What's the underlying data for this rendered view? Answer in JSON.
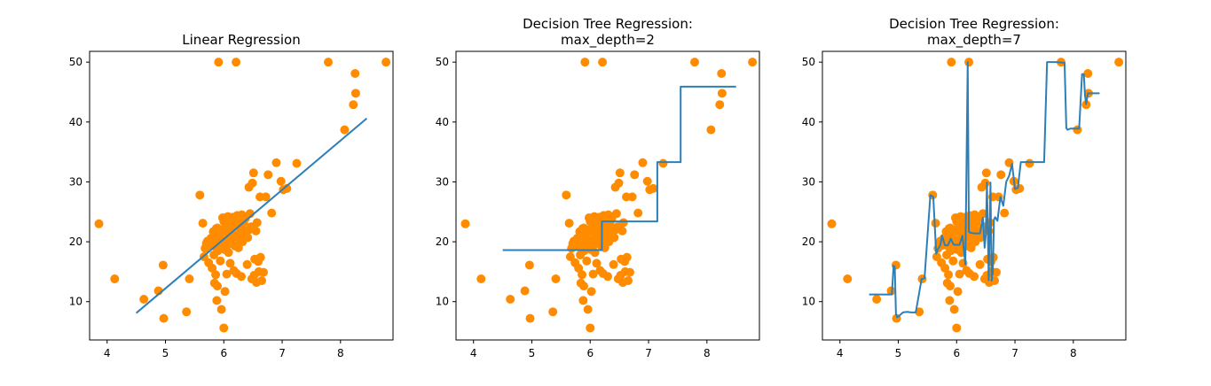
{
  "colors": {
    "scatter": "#ff8c00",
    "line": "#2c7fb8",
    "axis": "#000000"
  },
  "chart_data": [
    {
      "type": "scatter",
      "title": [
        "Linear Regression"
      ],
      "xlim": [
        3.7,
        8.9
      ],
      "ylim": [
        3.6,
        51.8
      ],
      "xticks": [
        4,
        5,
        6,
        7,
        8
      ],
      "yticks": [
        10,
        20,
        30,
        40,
        50
      ],
      "scatter": {
        "x": [
          3.86,
          4.13,
          4.63,
          4.88,
          4.96,
          4.97,
          5.36,
          5.41,
          5.59,
          5.64,
          5.66,
          5.68,
          5.7,
          5.72,
          5.74,
          5.76,
          5.78,
          5.8,
          5.82,
          5.83,
          5.85,
          5.86,
          5.87,
          5.88,
          5.89,
          5.9,
          5.92,
          5.93,
          5.94,
          5.95,
          5.96,
          5.97,
          5.98,
          6.0,
          6.01,
          6.02,
          6.03,
          6.04,
          6.05,
          6.06,
          6.07,
          6.08,
          6.09,
          6.1,
          6.11,
          6.12,
          6.13,
          6.14,
          6.15,
          6.16,
          6.17,
          6.18,
          6.19,
          6.2,
          6.21,
          6.22,
          6.23,
          6.24,
          6.25,
          6.26,
          6.27,
          6.28,
          6.3,
          6.31,
          6.32,
          6.33,
          6.34,
          6.35,
          6.37,
          6.38,
          6.4,
          6.41,
          6.43,
          6.45,
          6.47,
          6.49,
          6.51,
          6.53,
          6.55,
          6.57,
          6.59,
          6.62,
          6.65,
          6.68,
          6.72,
          6.76,
          6.82,
          6.9,
          6.98,
          7.02,
          7.08,
          7.25,
          5.8,
          5.84,
          5.89,
          5.96,
          6.0,
          6.05,
          5.91,
          6.21,
          6.43,
          6.48,
          6.52,
          6.56,
          6.6,
          6.63,
          5.87,
          6.17,
          7.79,
          8.07,
          8.22,
          8.26,
          8.25,
          8.78
        ],
        "y": [
          23.0,
          13.8,
          10.4,
          11.8,
          16.1,
          7.2,
          8.3,
          13.8,
          27.8,
          23.1,
          17.5,
          18.9,
          19.7,
          20.1,
          16.5,
          19.4,
          20.6,
          19.6,
          21.7,
          17.8,
          20.9,
          14.5,
          19.1,
          10.2,
          22.3,
          18.5,
          19.9,
          21.2,
          16.8,
          20.4,
          22.0,
          19.8,
          24.0,
          23.4,
          18.7,
          11.7,
          21.7,
          20.3,
          19.3,
          22.8,
          24.2,
          18.2,
          20.1,
          21.4,
          16.4,
          23.5,
          22.2,
          20.6,
          24.1,
          21.2,
          15.2,
          20.8,
          19.3,
          22.9,
          21.1,
          14.7,
          24.4,
          22.6,
          19.0,
          20.5,
          23.6,
          22.1,
          14.2,
          24.5,
          20.0,
          21.9,
          23.2,
          21.5,
          23.9,
          21.0,
          16.2,
          20.7,
          29.1,
          24.7,
          22.5,
          29.8,
          31.5,
          17.1,
          21.8,
          23.2,
          16.7,
          27.5,
          13.5,
          14.9,
          27.5,
          31.2,
          24.8,
          33.2,
          30.1,
          28.7,
          28.9,
          33.1,
          15.6,
          13.1,
          12.6,
          8.7,
          5.6,
          14.6,
          50.0,
          50.0,
          22.0,
          13.8,
          14.4,
          13.2,
          15.0,
          17.4,
          22.2,
          23.7,
          50.0,
          38.7,
          42.9,
          44.8,
          48.1,
          50.0
        ]
      },
      "line": {
        "x": [
          4.5,
          8.45
        ],
        "y": [
          8.1,
          40.6
        ]
      }
    },
    {
      "type": "scatter",
      "title": [
        "Decision Tree Regression:",
        "max_depth=2"
      ],
      "xlim": [
        3.7,
        8.9
      ],
      "ylim": [
        3.6,
        51.8
      ],
      "xticks": [
        4,
        5,
        6,
        7,
        8
      ],
      "yticks": [
        10,
        20,
        30,
        40,
        50
      ],
      "scatter_source": 0,
      "line": {
        "x": [
          4.5,
          6.2,
          6.2,
          7.15,
          7.15,
          7.55,
          7.55,
          8.5
        ],
        "y": [
          18.6,
          18.6,
          23.4,
          23.4,
          33.3,
          33.3,
          45.9,
          45.9
        ]
      }
    },
    {
      "type": "scatter",
      "title": [
        "Decision Tree Regression:",
        "max_depth=7"
      ],
      "xlim": [
        3.7,
        8.9
      ],
      "ylim": [
        3.6,
        51.8
      ],
      "xticks": [
        4,
        5,
        6,
        7,
        8
      ],
      "yticks": [
        10,
        20,
        30,
        40,
        50
      ],
      "scatter_source": 0,
      "line": {
        "x": [
          4.5,
          4.89,
          4.92,
          4.94,
          4.96,
          4.98,
          5.0,
          5.08,
          5.15,
          5.22,
          5.3,
          5.4,
          5.45,
          5.55,
          5.6,
          5.65,
          5.68,
          5.72,
          5.75,
          5.8,
          5.85,
          5.9,
          5.95,
          6.0,
          6.05,
          6.1,
          6.15,
          6.19,
          6.21,
          6.23,
          6.25,
          6.3,
          6.35,
          6.4,
          6.45,
          6.48,
          6.5,
          6.52,
          6.55,
          6.58,
          6.6,
          6.62,
          6.64,
          6.66,
          6.7,
          6.75,
          6.8,
          6.85,
          6.9,
          6.95,
          7.0,
          7.05,
          7.1,
          7.2,
          7.5,
          7.55,
          7.58,
          7.7,
          7.85,
          7.88,
          7.9,
          7.95,
          8.0,
          8.1,
          8.15,
          8.18,
          8.2,
          8.22,
          8.25,
          8.3,
          8.45
        ],
        "y": [
          11.2,
          11.2,
          16.0,
          15.8,
          8.0,
          7.4,
          7.5,
          8.2,
          8.3,
          8.2,
          8.2,
          13.8,
          13.9,
          27.8,
          27.5,
          18.0,
          18.8,
          19.4,
          21.0,
          19.4,
          19.4,
          20.5,
          19.5,
          19.5,
          19.5,
          21.0,
          16.2,
          50.0,
          21.7,
          21.5,
          21.5,
          21.4,
          21.4,
          21.4,
          24.0,
          19.0,
          21.2,
          29.9,
          13.6,
          29.9,
          13.5,
          14.8,
          23.7,
          24.1,
          23.5,
          27.5,
          26.0,
          30.0,
          31.0,
          33.0,
          28.8,
          29.0,
          33.3,
          33.3,
          33.3,
          50.0,
          50.0,
          50.0,
          49.9,
          39.0,
          38.7,
          38.9,
          38.9,
          38.9,
          48.0,
          48.0,
          44.5,
          43.0,
          44.8,
          44.8,
          44.8
        ]
      }
    }
  ]
}
